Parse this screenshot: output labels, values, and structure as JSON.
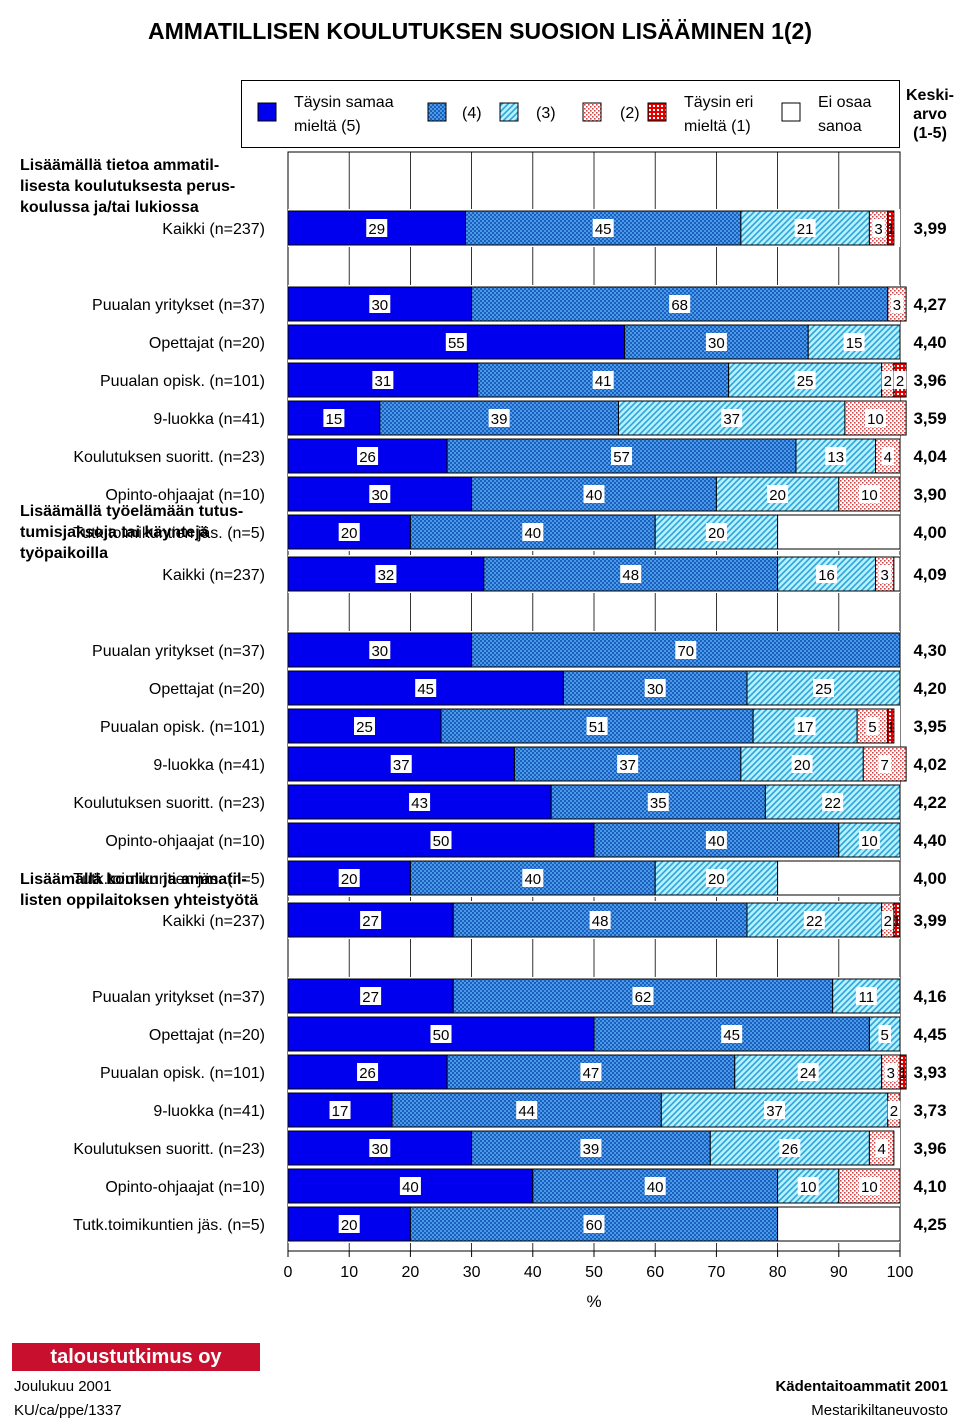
{
  "title": "AMMATILLISEN KOULUTUKSEN SUOSION LISÄÄMINEN   1(2)",
  "legend": {
    "items": [
      {
        "label_lines": [
          "Täysin samaa",
          "mieltä (5)"
        ],
        "pattern": "solid"
      },
      {
        "label_lines": [
          "(4)"
        ],
        "pattern": "p4"
      },
      {
        "label_lines": [
          "(3)"
        ],
        "pattern": "p3"
      },
      {
        "label_lines": [
          "(2)"
        ],
        "pattern": "p2"
      },
      {
        "label_lines": [
          "Täysin eri",
          "mieltä (1)"
        ],
        "pattern": "p1"
      },
      {
        "label_lines": [
          "Ei osaa",
          "sanoa"
        ],
        "pattern": "empty"
      }
    ]
  },
  "mean_header": {
    "line1": "Keski-",
    "line2": "arvo",
    "line3": "(1-5)"
  },
  "colors": {
    "solid": "#0000ee",
    "p4": "#3b8fe0",
    "p3": "#60c8f0",
    "p2": "#e4b0b0",
    "p1": "#d80000"
  },
  "footer": {
    "logo": "taloustutkimus oy",
    "date": "Joulukuu 2001",
    "code": "KU/ca/ppe/1337",
    "right1": "Kädentaitoammatit 2001",
    "right2": "Mestarikiltaneuvosto"
  },
  "chart_data": {
    "type": "bar",
    "orientation": "horizontal-stacked-100",
    "x_ticks": [
      "0",
      "10",
      "20",
      "30",
      "40",
      "50",
      "60",
      "70",
      "80",
      "90",
      "100"
    ],
    "xlabel": "%",
    "xlim": [
      0,
      100
    ],
    "series_names": [
      "Täysin samaa mieltä (5)",
      "(4)",
      "(3)",
      "(2)",
      "Täysin eri mieltä (1)",
      "Ei osaa sanoa"
    ],
    "groups": [
      {
        "heading": [
          "Lisäämällä tietoa ammatil-",
          "lisesta koulutuksesta perus-",
          "koulussa ja/tai lukiossa"
        ],
        "rows": [
          {
            "label": "Kaikki (n=237)",
            "values": [
              29,
              45,
              21,
              3,
              1,
              0
            ],
            "mean": "3,99"
          },
          {
            "label": "Puualan yritykset (n=37)",
            "values": [
              30,
              68,
              0,
              3,
              0,
              0
            ],
            "mean": "4,27"
          },
          {
            "label": "Opettajat (n=20)",
            "values": [
              55,
              30,
              15,
              0,
              0,
              0
            ],
            "mean": "4,40"
          },
          {
            "label": "Puualan opisk. (n=101)",
            "values": [
              31,
              41,
              25,
              2,
              2,
              0
            ],
            "mean": "3,96"
          },
          {
            "label": "9-luokka (n=41)",
            "values": [
              15,
              39,
              37,
              10,
              0,
              0
            ],
            "mean": "3,59"
          },
          {
            "label": "Koulutuksen suoritt. (n=23)",
            "values": [
              26,
              57,
              13,
              4,
              0,
              0
            ],
            "mean": "4,04"
          },
          {
            "label": "Opinto-ohjaajat (n=10)",
            "values": [
              30,
              40,
              20,
              10,
              0,
              0
            ],
            "mean": "3,90"
          },
          {
            "label": "Tutk.toimikuntien jäs. (n=5)",
            "values": [
              20,
              40,
              20,
              0,
              0,
              20
            ],
            "mean": "4,00"
          }
        ]
      },
      {
        "heading": [
          "Lisäämällä työelämään tutus-",
          "tumisjaksoja tai käyntejä",
          "työpaikoilla"
        ],
        "rows": [
          {
            "label": "Kaikki (n=237)",
            "values": [
              32,
              48,
              16,
              3,
              0,
              1
            ],
            "mean": "4,09"
          },
          {
            "label": "Puualan yritykset (n=37)",
            "values": [
              30,
              70,
              0,
              0,
              0,
              0
            ],
            "mean": "4,30"
          },
          {
            "label": "Opettajat (n=20)",
            "values": [
              45,
              30,
              25,
              0,
              0,
              0
            ],
            "mean": "4,20"
          },
          {
            "label": "Puualan opisk. (n=101)",
            "values": [
              25,
              51,
              17,
              5,
              1,
              0
            ],
            "mean": "3,95"
          },
          {
            "label": "9-luokka (n=41)",
            "values": [
              37,
              37,
              20,
              7,
              0,
              0
            ],
            "mean": "4,02"
          },
          {
            "label": "Koulutuksen suoritt. (n=23)",
            "values": [
              43,
              35,
              22,
              0,
              0,
              0
            ],
            "mean": "4,22"
          },
          {
            "label": "Opinto-ohjaajat (n=10)",
            "values": [
              50,
              40,
              10,
              0,
              0,
              0
            ],
            "mean": "4,40"
          },
          {
            "label": "Tutk.toimikuntien jäs. (n=5)",
            "values": [
              20,
              40,
              20,
              0,
              0,
              20
            ],
            "mean": "4,00"
          }
        ]
      },
      {
        "heading": [
          "Lisäämällä koulun ja ammatil-",
          "listen oppilaitoksen yhteistyötä"
        ],
        "rows": [
          {
            "label": "Kaikki (n=237)",
            "values": [
              27,
              48,
              22,
              2,
              1,
              0
            ],
            "mean": "3,99"
          },
          {
            "label": "Puualan yritykset (n=37)",
            "values": [
              27,
              62,
              11,
              0,
              0,
              0
            ],
            "mean": "4,16"
          },
          {
            "label": "Opettajat (n=20)",
            "values": [
              50,
              45,
              5,
              0,
              0,
              0
            ],
            "mean": "4,45"
          },
          {
            "label": "Puualan opisk. (n=101)",
            "values": [
              26,
              47,
              24,
              3,
              1,
              0
            ],
            "mean": "3,93"
          },
          {
            "label": "9-luokka (n=41)",
            "values": [
              17,
              44,
              37,
              2,
              0,
              0
            ],
            "mean": "3,73"
          },
          {
            "label": "Koulutuksen suoritt. (n=23)",
            "values": [
              30,
              39,
              26,
              4,
              0,
              0
            ],
            "mean": "3,96"
          },
          {
            "label": "Opinto-ohjaajat (n=10)",
            "values": [
              40,
              40,
              10,
              10,
              0,
              0
            ],
            "mean": "4,10"
          },
          {
            "label": "Tutk.toimikuntien jäs. (n=5)",
            "values": [
              20,
              60,
              0,
              0,
              0,
              20
            ],
            "mean": "4,25"
          }
        ]
      }
    ]
  }
}
